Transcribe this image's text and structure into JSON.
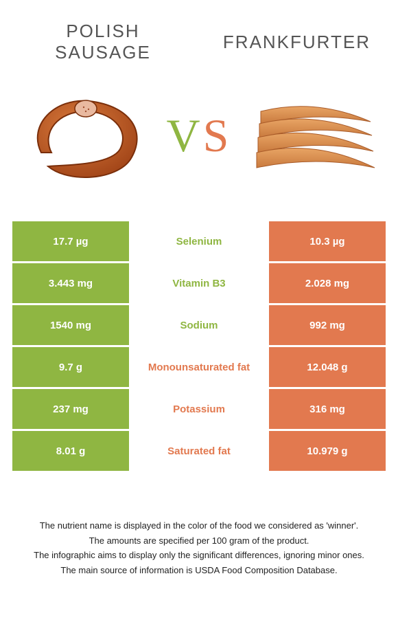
{
  "header": {
    "left_title_line1": "POLISH",
    "left_title_line2": "SAUSAGE",
    "right_title": "FRANKFURTER"
  },
  "vs": {
    "v": "V",
    "s": "S"
  },
  "colors": {
    "left": "#8fb642",
    "right": "#e2794f",
    "background": "#ffffff",
    "text": "#333333"
  },
  "rows": [
    {
      "left": "17.7 µg",
      "label": "Selenium",
      "right": "10.3 µg",
      "winner": "left"
    },
    {
      "left": "3.443 mg",
      "label": "Vitamin B3",
      "right": "2.028 mg",
      "winner": "left"
    },
    {
      "left": "1540 mg",
      "label": "Sodium",
      "right": "992 mg",
      "winner": "left"
    },
    {
      "left": "9.7 g",
      "label": "Monounsaturated fat",
      "right": "12.048 g",
      "winner": "right"
    },
    {
      "left": "237 mg",
      "label": "Potassium",
      "right": "316 mg",
      "winner": "right"
    },
    {
      "left": "8.01 g",
      "label": "Saturated fat",
      "right": "10.979 g",
      "winner": "right"
    }
  ],
  "notes": [
    "The nutrient name is displayed in the color of the food we considered as 'winner'.",
    "The amounts are specified per 100 gram of the product.",
    "The infographic aims to display only the significant differences, ignoring minor ones.",
    "The main source of information is USDA Food Composition Database."
  ]
}
